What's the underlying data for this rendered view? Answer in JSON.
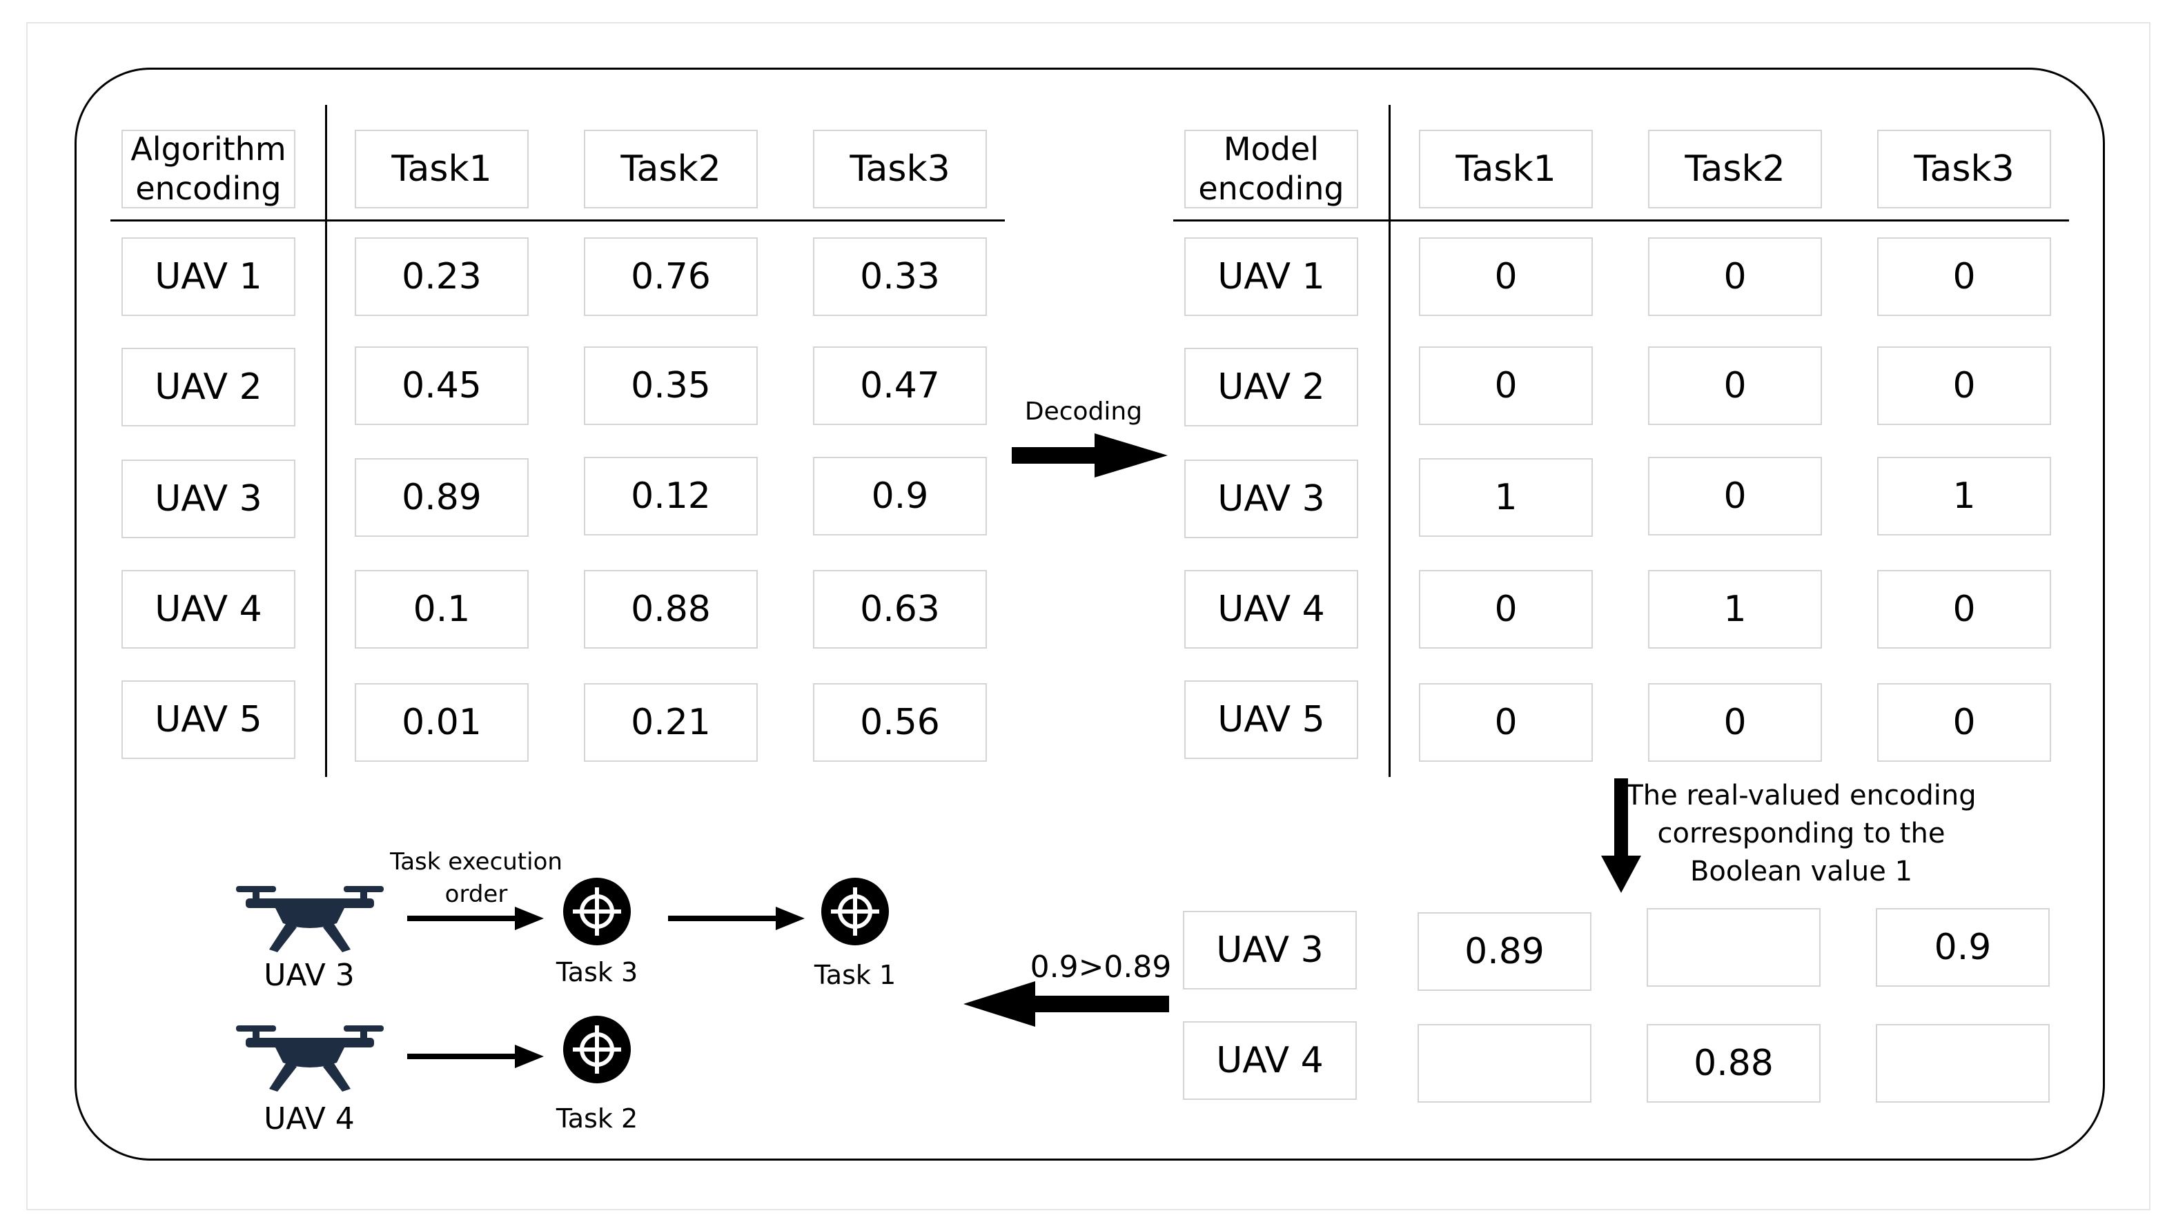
{
  "left_table": {
    "corner_header": "Algorithm\nencoding",
    "columns": [
      "Task1",
      "Task2",
      "Task3"
    ],
    "rows": [
      {
        "label": "UAV 1",
        "values": [
          "0.23",
          "0.76",
          "0.33"
        ]
      },
      {
        "label": "UAV 2",
        "values": [
          "0.45",
          "0.35",
          "0.47"
        ]
      },
      {
        "label": "UAV 3",
        "values": [
          "0.89",
          "0.12",
          "0.9"
        ]
      },
      {
        "label": "UAV 4",
        "values": [
          "0.1",
          "0.88",
          "0.63"
        ]
      },
      {
        "label": "UAV 5",
        "values": [
          "0.01",
          "0.21",
          "0.56"
        ]
      }
    ]
  },
  "right_table": {
    "corner_header": "Model\nencoding",
    "columns": [
      "Task1",
      "Task2",
      "Task3"
    ],
    "rows": [
      {
        "label": "UAV 1",
        "values": [
          "0",
          "0",
          "0"
        ]
      },
      {
        "label": "UAV 2",
        "values": [
          "0",
          "0",
          "0"
        ]
      },
      {
        "label": "UAV 3",
        "values": [
          "1",
          "0",
          "1"
        ]
      },
      {
        "label": "UAV 4",
        "values": [
          "0",
          "1",
          "0"
        ]
      },
      {
        "label": "UAV 5",
        "values": [
          "0",
          "0",
          "0"
        ]
      }
    ]
  },
  "decoding_label": "Decoding",
  "selection_note": "The real-valued encoding\ncorresponding to the\nBoolean value 1",
  "selected_table": {
    "rows": [
      {
        "label": "UAV 3",
        "values": [
          "0.89",
          "",
          "0.9"
        ]
      },
      {
        "label": "UAV 4",
        "values": [
          "",
          "0.88",
          ""
        ]
      }
    ]
  },
  "comparison_label": "0.9>0.89",
  "execution_order_label": "Task execution\norder",
  "execution": {
    "uav3_label": "UAV 3",
    "uav4_label": "UAV 4",
    "task3_label": "Task 3",
    "task1_label": "Task 1",
    "task2_label": "Task 2"
  },
  "icons": {
    "drone": "drone-icon",
    "target": "crosshair-target-icon"
  },
  "colors": {
    "drone": "#1f2d42",
    "grid_border": "#d4d4d4",
    "frame": "#000000"
  }
}
